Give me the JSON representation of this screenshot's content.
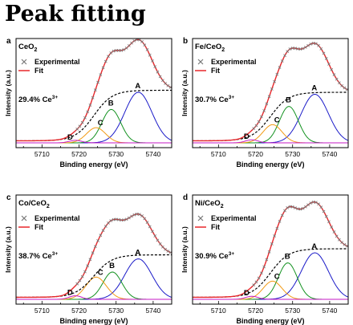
{
  "page_title": "Peak fitting",
  "chart_data": [
    {
      "panel_letter": "a",
      "sample": "CeO",
      "sample_sub": "2",
      "type": "line",
      "xlabel": "Binding energy (eV)",
      "ylabel": "Intensity (a.u.)",
      "xlim": [
        5703,
        5745
      ],
      "xticks": [
        5710,
        5720,
        5730,
        5740
      ],
      "legend": {
        "position": "top-left",
        "marker_label": "Experimental",
        "line_label": "Fit"
      },
      "ratio_text": "29.4% Ce",
      "ratio_sup": "3+",
      "colors": {
        "experimental": "#777777",
        "fit": "#e8272b",
        "background": "#000000",
        "A": "#1a1ac8",
        "B": "#12911f",
        "C": "#f29a14",
        "D": "#c419c4"
      },
      "peaks": [
        {
          "label": "A",
          "center": 5736,
          "height": 0.5,
          "width": 8.6
        },
        {
          "label": "B",
          "center": 5728.7,
          "height": 0.33,
          "width": 6.0
        },
        {
          "label": "C",
          "center": 5724.6,
          "height": 0.15,
          "width": 6.0
        },
        {
          "label": "D",
          "center": 5719,
          "height": 0.025,
          "width": 4.0
        }
      ],
      "background_step": {
        "low": 0.02,
        "high": 0.52,
        "center": 5724,
        "width": 2.5
      }
    },
    {
      "panel_letter": "b",
      "sample": "Fe/CeO",
      "sample_sub": "2",
      "type": "line",
      "xlabel": "Binding energy (eV)",
      "ylabel": "Intensity (a.u.)",
      "xlim": [
        5703,
        5745
      ],
      "xticks": [
        5710,
        5720,
        5730,
        5740
      ],
      "legend": {
        "position": "top-left",
        "marker_label": "Experimental",
        "line_label": "Fit"
      },
      "ratio_text": "30.7% Ce",
      "ratio_sup": "3+",
      "colors": {
        "experimental": "#777777",
        "fit": "#e8272b",
        "background": "#000000",
        "A": "#1a1ac8",
        "B": "#12911f",
        "C": "#f29a14",
        "D": "#c419c4"
      },
      "peaks": [
        {
          "label": "A",
          "center": 5736,
          "height": 0.48,
          "width": 8.6
        },
        {
          "label": "B",
          "center": 5729,
          "height": 0.36,
          "width": 6.0
        },
        {
          "label": "C",
          "center": 5724.6,
          "height": 0.18,
          "width": 6.0
        },
        {
          "label": "D",
          "center": 5719,
          "height": 0.03,
          "width": 4.0
        }
      ],
      "background_step": {
        "low": 0.02,
        "high": 0.5,
        "center": 5724,
        "width": 2.5
      }
    },
    {
      "panel_letter": "c",
      "sample": "Co/CeO",
      "sample_sub": "2",
      "type": "line",
      "xlabel": "Binding energy (eV)",
      "ylabel": "Intensity (a.u.)",
      "xlim": [
        5703,
        5745
      ],
      "xticks": [
        5710,
        5720,
        5730,
        5740
      ],
      "legend": {
        "position": "top-left",
        "marker_label": "Experimental",
        "line_label": "Fit"
      },
      "ratio_text": "38.7% Ce",
      "ratio_sup": "3+",
      "colors": {
        "experimental": "#777777",
        "fit": "#e8272b",
        "background": "#000000",
        "A": "#1a1ac8",
        "B": "#12911f",
        "C": "#f29a14",
        "D": "#c419c4"
      },
      "peaks": [
        {
          "label": "A",
          "center": 5736,
          "height": 0.4,
          "width": 8.6
        },
        {
          "label": "B",
          "center": 5729,
          "height": 0.27,
          "width": 6.0
        },
        {
          "label": "C",
          "center": 5724.6,
          "height": 0.22,
          "width": 6.5
        },
        {
          "label": "D",
          "center": 5719,
          "height": 0.035,
          "width": 4.0
        }
      ],
      "background_step": {
        "low": 0.02,
        "high": 0.44,
        "center": 5724,
        "width": 2.5
      }
    },
    {
      "panel_letter": "d",
      "sample": "Ni/CeO",
      "sample_sub": "2",
      "type": "line",
      "xlabel": "Binding energy (eV)",
      "ylabel": "Intensity (a.u.)",
      "xlim": [
        5703,
        5745
      ],
      "xticks": [
        5710,
        5720,
        5730,
        5740
      ],
      "legend": {
        "position": "top-left",
        "marker_label": "Experimental",
        "line_label": "Fit"
      },
      "ratio_text": "30.9% Ce",
      "ratio_sup": "3+",
      "colors": {
        "experimental": "#777777",
        "fit": "#e8272b",
        "background": "#000000",
        "A": "#1a1ac8",
        "B": "#12911f",
        "C": "#f29a14",
        "D": "#c419c4"
      },
      "peaks": [
        {
          "label": "A",
          "center": 5736,
          "height": 0.46,
          "width": 8.6
        },
        {
          "label": "B",
          "center": 5728.7,
          "height": 0.36,
          "width": 6.0
        },
        {
          "label": "C",
          "center": 5724.6,
          "height": 0.18,
          "width": 6.0
        },
        {
          "label": "D",
          "center": 5719,
          "height": 0.03,
          "width": 4.0
        }
      ],
      "background_step": {
        "low": 0.02,
        "high": 0.5,
        "center": 5724,
        "width": 2.5
      }
    }
  ]
}
